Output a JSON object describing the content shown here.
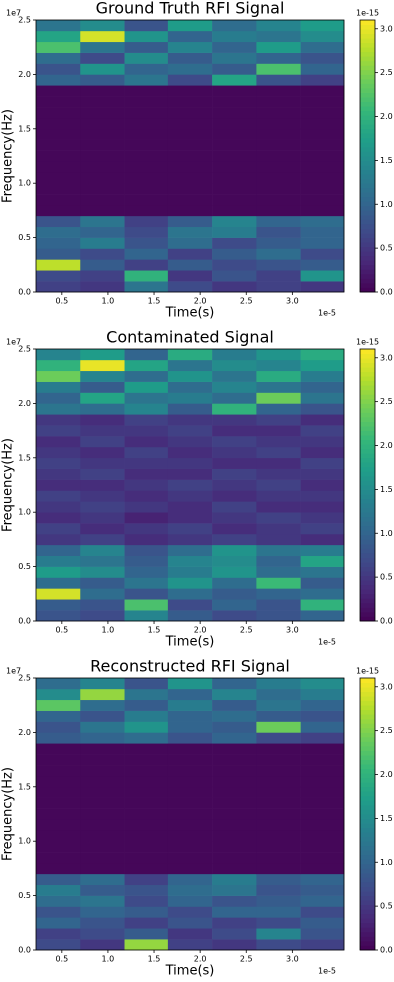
{
  "chart_data": [
    {
      "type": "heatmap",
      "title": "Ground Truth RFI Signal",
      "x_label": "Time(s)",
      "y_label": "Frequency(Hz)",
      "x_offset": "1e-5",
      "y_offset": "1e7",
      "color_offset": "1e-15",
      "colormap": "viridis",
      "xbins": [
        0.22,
        0.7,
        1.18,
        1.65,
        2.13,
        2.61,
        3.09,
        3.56
      ],
      "ybins": [
        0,
        0.1,
        0.2,
        0.3,
        0.4,
        0.5,
        0.6,
        0.7,
        0.8,
        0.9,
        1.0,
        1.1,
        1.2,
        1.3,
        1.4,
        1.5,
        1.6,
        1.7,
        1.8,
        1.9,
        2.0,
        2.1,
        2.2,
        2.3,
        2.4,
        2.5
      ],
      "xlim": [
        0.22,
        3.56
      ],
      "ylim": [
        0,
        2.5
      ],
      "clim": [
        0,
        3.1
      ],
      "xticks": [
        0.5,
        {
          "value": 1,
          "label": "1.0"
        },
        1.5,
        {
          "value": 2,
          "label": "2.0"
        },
        2.5,
        {
          "value": 3,
          "label": "3.0"
        }
      ],
      "yticks": [
        {
          "value": 0,
          "label": "0.0"
        },
        0.5,
        {
          "value": 1,
          "label": "1.0"
        },
        1.5,
        {
          "value": 2,
          "label": "2.0"
        },
        2.5
      ],
      "cticks": [
        {
          "value": 0,
          "label": "0.0"
        },
        0.5,
        {
          "value": 1,
          "label": "1.0"
        },
        1.5,
        {
          "value": 2,
          "label": "2.0"
        },
        2.5,
        {
          "value": 3,
          "label": "3.0"
        }
      ],
      "z": [
        [
          0.6,
          0.5,
          1.2,
          0.7,
          0.5,
          0.6,
          0.5
        ],
        [
          0.7,
          0.6,
          2.0,
          0.5,
          0.8,
          0.6,
          1.6
        ],
        [
          2.8,
          0.9,
          0.6,
          0.9,
          0.7,
          0.8,
          0.9
        ],
        [
          0.9,
          0.7,
          1.0,
          0.6,
          0.9,
          1.1,
          0.7
        ],
        [
          1.0,
          1.3,
          0.8,
          1.1,
          0.7,
          0.9,
          1.0
        ],
        [
          1.1,
          1.0,
          0.7,
          1.2,
          1.3,
          0.8,
          1.0
        ],
        [
          0.8,
          1.2,
          0.6,
          0.9,
          1.4,
          1.0,
          1.1
        ],
        [
          0.05,
          0.05,
          0.05,
          0.05,
          0.05,
          0.05,
          0.05
        ],
        [
          0.05,
          0.05,
          0.05,
          0.05,
          0.05,
          0.05,
          0.05
        ],
        [
          0.05,
          0.05,
          0.05,
          0.05,
          0.05,
          0.05,
          0.05
        ],
        [
          0.05,
          0.05,
          0.05,
          0.05,
          0.05,
          0.05,
          0.05
        ],
        [
          0.05,
          0.05,
          0.05,
          0.05,
          0.05,
          0.05,
          0.05
        ],
        [
          0.05,
          0.05,
          0.05,
          0.05,
          0.05,
          0.05,
          0.05
        ],
        [
          0.05,
          0.05,
          0.05,
          0.05,
          0.05,
          0.05,
          0.05
        ],
        [
          0.05,
          0.05,
          0.05,
          0.05,
          0.05,
          0.05,
          0.05
        ],
        [
          0.05,
          0.05,
          0.05,
          0.05,
          0.05,
          0.05,
          0.05
        ],
        [
          0.05,
          0.05,
          0.05,
          0.05,
          0.05,
          0.05,
          0.05
        ],
        [
          0.05,
          0.05,
          0.05,
          0.05,
          0.05,
          0.05,
          0.05
        ],
        [
          0.05,
          0.05,
          0.05,
          0.05,
          0.05,
          0.05,
          0.05
        ],
        [
          1.0,
          0.9,
          1.2,
          0.7,
          1.8,
          0.8,
          0.6
        ],
        [
          0.8,
          1.6,
          1.0,
          1.1,
          0.9,
          2.2,
          1.0
        ],
        [
          1.1,
          0.7,
          1.5,
          0.9,
          1.2,
          1.0,
          0.8
        ],
        [
          2.2,
          1.2,
          0.9,
          1.4,
          1.0,
          1.7,
          1.1
        ],
        [
          1.8,
          2.9,
          1.6,
          1.0,
          1.3,
          1.2,
          1.5
        ],
        [
          1.2,
          1.5,
          0.8,
          1.7,
          1.1,
          1.4,
          1.7
        ]
      ]
    },
    {
      "type": "heatmap",
      "title": "Contaminated Signal",
      "x_label": "Time(s)",
      "y_label": "Frequency(Hz)",
      "x_offset": "1e-5",
      "y_offset": "1e7",
      "color_offset": "1e-15",
      "colormap": "viridis",
      "xbins": [
        0.22,
        0.7,
        1.18,
        1.65,
        2.13,
        2.61,
        3.09,
        3.56
      ],
      "ybins": [
        0,
        0.1,
        0.2,
        0.3,
        0.4,
        0.5,
        0.6,
        0.7,
        0.8,
        0.9,
        1.0,
        1.1,
        1.2,
        1.3,
        1.4,
        1.5,
        1.6,
        1.7,
        1.8,
        1.9,
        2.0,
        2.1,
        2.2,
        2.3,
        2.4,
        2.5
      ],
      "xlim": [
        0.22,
        3.56
      ],
      "ylim": [
        0,
        2.5
      ],
      "clim": [
        0,
        3.1
      ],
      "xticks": [
        0.5,
        {
          "value": 1,
          "label": "1.0"
        },
        1.5,
        {
          "value": 2,
          "label": "2.0"
        },
        2.5,
        {
          "value": 3,
          "label": "3.0"
        }
      ],
      "yticks": [
        {
          "value": 0,
          "label": "0.0"
        },
        0.5,
        {
          "value": 1,
          "label": "1.0"
        },
        1.5,
        {
          "value": 2,
          "label": "2.0"
        },
        2.5
      ],
      "cticks": [
        {
          "value": 0,
          "label": "0.0"
        },
        0.5,
        {
          "value": 1,
          "label": "1.0"
        },
        1.5,
        {
          "value": 2,
          "label": "2.0"
        },
        2.5,
        {
          "value": 3,
          "label": "3.0"
        }
      ],
      "z": [
        [
          0.8,
          0.7,
          1.4,
          0.9,
          0.7,
          0.8,
          1.0
        ],
        [
          0.9,
          0.8,
          2.2,
          0.7,
          1.0,
          0.8,
          2.0
        ],
        [
          2.9,
          1.1,
          0.8,
          1.1,
          0.9,
          1.0,
          1.1
        ],
        [
          1.1,
          0.9,
          1.2,
          1.6,
          1.1,
          2.1,
          0.9
        ],
        [
          1.7,
          1.5,
          1.0,
          1.3,
          1.6,
          1.1,
          1.2
        ],
        [
          1.3,
          1.2,
          0.9,
          1.4,
          1.5,
          1.0,
          1.8
        ],
        [
          1.0,
          1.4,
          0.8,
          1.1,
          1.6,
          1.2,
          1.3
        ],
        [
          0.5,
          0.6,
          0.4,
          0.5,
          0.6,
          0.5,
          0.4
        ],
        [
          0.6,
          0.4,
          0.5,
          0.6,
          0.4,
          0.5,
          0.6
        ],
        [
          0.4,
          0.5,
          0.3,
          0.4,
          0.5,
          0.6,
          0.5
        ],
        [
          0.5,
          0.6,
          0.5,
          0.4,
          0.6,
          0.4,
          0.4
        ],
        [
          0.6,
          0.5,
          0.4,
          0.5,
          0.4,
          0.5,
          0.5
        ],
        [
          0.4,
          0.4,
          0.5,
          0.6,
          0.5,
          0.6,
          0.4
        ],
        [
          0.5,
          0.6,
          0.4,
          0.4,
          0.6,
          0.5,
          0.5
        ],
        [
          0.6,
          0.5,
          0.5,
          0.5,
          0.4,
          0.4,
          0.6
        ],
        [
          0.5,
          0.4,
          0.6,
          0.4,
          0.5,
          0.6,
          0.4
        ],
        [
          0.4,
          0.6,
          0.4,
          0.5,
          0.6,
          0.5,
          0.5
        ],
        [
          0.6,
          0.5,
          0.5,
          0.6,
          0.4,
          0.4,
          0.6
        ],
        [
          0.5,
          0.4,
          0.6,
          0.5,
          0.5,
          0.6,
          0.4
        ],
        [
          1.2,
          1.1,
          1.4,
          0.9,
          2.0,
          1.0,
          0.8
        ],
        [
          1.0,
          1.8,
          1.2,
          1.3,
          1.1,
          2.4,
          1.2
        ],
        [
          1.3,
          0.9,
          1.7,
          1.1,
          1.4,
          1.2,
          1.0
        ],
        [
          2.4,
          1.4,
          1.1,
          1.6,
          1.2,
          1.9,
          1.3
        ],
        [
          2.0,
          3.0,
          1.8,
          1.2,
          1.5,
          1.4,
          1.7
        ],
        [
          1.4,
          1.7,
          1.0,
          1.9,
          1.3,
          1.6,
          1.9
        ]
      ]
    },
    {
      "type": "heatmap",
      "title": "Reconstructed RFI Signal",
      "x_label": "Time(s)",
      "y_label": "Frequency(Hz)",
      "x_offset": "1e-5",
      "y_offset": "1e7",
      "color_offset": "1e-15",
      "colormap": "viridis",
      "xbins": [
        0.22,
        0.7,
        1.18,
        1.65,
        2.13,
        2.61,
        3.09,
        3.56
      ],
      "ybins": [
        0,
        0.1,
        0.2,
        0.3,
        0.4,
        0.5,
        0.6,
        0.7,
        0.8,
        0.9,
        1.0,
        1.1,
        1.2,
        1.3,
        1.4,
        1.5,
        1.6,
        1.7,
        1.8,
        1.9,
        2.0,
        2.1,
        2.2,
        2.3,
        2.4,
        2.5
      ],
      "xlim": [
        0.22,
        3.56
      ],
      "ylim": [
        0,
        2.5
      ],
      "clim": [
        0,
        3.1
      ],
      "xticks": [
        0.5,
        {
          "value": 1,
          "label": "1.0"
        },
        1.5,
        {
          "value": 2,
          "label": "2.0"
        },
        2.5,
        {
          "value": 3,
          "label": "3.0"
        }
      ],
      "yticks": [
        {
          "value": 0,
          "label": "0.0"
        },
        0.5,
        {
          "value": 1,
          "label": "1.0"
        },
        1.5,
        {
          "value": 2,
          "label": "2.0"
        },
        2.5
      ],
      "cticks": [
        {
          "value": 0,
          "label": "0.0"
        },
        0.5,
        {
          "value": 1,
          "label": "1.0"
        },
        1.5,
        {
          "value": 2,
          "label": "2.0"
        },
        2.5,
        {
          "value": 3,
          "label": "3.0"
        }
      ],
      "z": [
        [
          0.7,
          0.5,
          2.6,
          0.6,
          0.5,
          0.7,
          0.6
        ],
        [
          0.6,
          0.7,
          0.9,
          0.5,
          0.7,
          1.4,
          0.8
        ],
        [
          1.0,
          0.8,
          0.6,
          0.8,
          0.6,
          0.7,
          0.9
        ],
        [
          0.8,
          1.0,
          0.9,
          0.7,
          1.0,
          1.0,
          0.7
        ],
        [
          1.1,
          1.2,
          0.7,
          1.0,
          0.8,
          0.9,
          1.0
        ],
        [
          1.3,
          0.9,
          0.8,
          1.1,
          1.2,
          0.8,
          0.9
        ],
        [
          0.9,
          1.1,
          0.6,
          1.0,
          1.3,
          0.9,
          1.0
        ],
        [
          0.05,
          0.05,
          0.05,
          0.05,
          0.05,
          0.05,
          0.05
        ],
        [
          0.05,
          0.05,
          0.05,
          0.05,
          0.05,
          0.05,
          0.05
        ],
        [
          0.05,
          0.05,
          0.05,
          0.05,
          0.05,
          0.05,
          0.05
        ],
        [
          0.05,
          0.05,
          0.05,
          0.05,
          0.05,
          0.05,
          0.05
        ],
        [
          0.05,
          0.05,
          0.05,
          0.05,
          0.05,
          0.05,
          0.05
        ],
        [
          0.05,
          0.05,
          0.05,
          0.05,
          0.05,
          0.05,
          0.05
        ],
        [
          0.05,
          0.05,
          0.05,
          0.05,
          0.05,
          0.05,
          0.05
        ],
        [
          0.05,
          0.05,
          0.05,
          0.05,
          0.05,
          0.05,
          0.05
        ],
        [
          0.05,
          0.05,
          0.05,
          0.05,
          0.05,
          0.05,
          0.05
        ],
        [
          0.05,
          0.05,
          0.05,
          0.05,
          0.05,
          0.05,
          0.05
        ],
        [
          0.05,
          0.05,
          0.05,
          0.05,
          0.05,
          0.05,
          0.05
        ],
        [
          0.05,
          0.05,
          0.05,
          0.05,
          0.05,
          0.05,
          0.05
        ],
        [
          0.9,
          1.0,
          1.1,
          0.8,
          1.0,
          0.7,
          0.6
        ],
        [
          0.8,
          1.2,
          1.6,
          1.0,
          0.9,
          2.4,
          1.0
        ],
        [
          1.0,
          0.8,
          1.3,
          1.0,
          1.1,
          0.9,
          0.8
        ],
        [
          2.3,
          1.1,
          0.9,
          1.3,
          0.9,
          1.2,
          1.0
        ],
        [
          1.5,
          2.6,
          1.2,
          1.0,
          1.4,
          1.1,
          1.3
        ],
        [
          1.1,
          1.4,
          0.8,
          1.6,
          1.0,
          1.3,
          1.5
        ]
      ]
    }
  ]
}
